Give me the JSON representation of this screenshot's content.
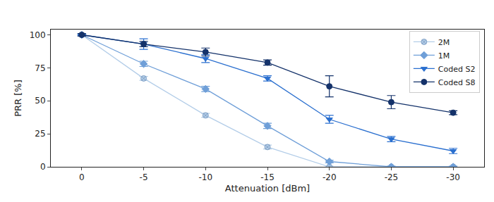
{
  "chart_data": {
    "type": "line",
    "x_label": "Attenuation [dBm]",
    "y_label": "PRR [%]",
    "categories": [
      "0",
      "-5",
      "-10",
      "-15",
      "-20",
      "-25",
      "-30"
    ],
    "ylim": [
      0,
      104
    ],
    "yticks": [
      0,
      25,
      50,
      75,
      100
    ],
    "grid": false,
    "legend": "upper right",
    "series": [
      {
        "name": "2M",
        "color": "#b3cde8",
        "marker": "circle-x",
        "line_style": "solid",
        "values": [
          100,
          67,
          39,
          15,
          0,
          0,
          0
        ],
        "errors": [
          0.5,
          1.5,
          1.5,
          1.5,
          0.5,
          0.5,
          0.5
        ]
      },
      {
        "name": "1M",
        "color": "#6f9fd8",
        "marker": "diamond",
        "line_style": "solid",
        "values": [
          100,
          78,
          59,
          31,
          4,
          0,
          0
        ],
        "errors": [
          0.5,
          2,
          2,
          2,
          1,
          0.5,
          0.5
        ]
      },
      {
        "name": "Coded S2",
        "color": "#2a6fcf",
        "marker": "triangle-down",
        "line_style": "solid",
        "values": [
          100,
          93,
          82,
          67,
          36,
          21,
          12
        ],
        "errors": [
          0.5,
          4,
          3,
          2,
          3,
          2,
          2
        ]
      },
      {
        "name": "Coded S8",
        "color": "#14326a",
        "marker": "circle",
        "line_style": "solid",
        "values": [
          100,
          93,
          87,
          79,
          61,
          49,
          41
        ],
        "errors": [
          1,
          2,
          3,
          2,
          8,
          5,
          1.5
        ]
      }
    ]
  }
}
